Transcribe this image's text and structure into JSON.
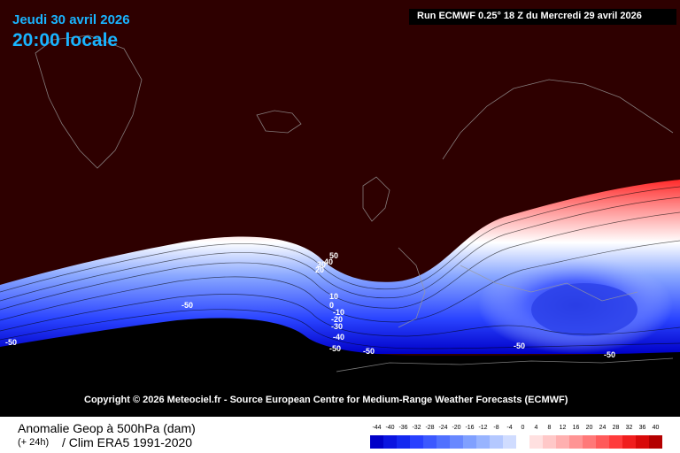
{
  "header": {
    "date": "Jeudi 30 avril 2026",
    "time": "20:00 locale",
    "run": "Run ECMWF 0.25° 18 Z du Mercredi 29 avril 2026"
  },
  "copyright": "Copyright © 2026 Meteociel.fr - Source European Centre for Medium-Range Weather Forecasts (ECMWF)",
  "legend": {
    "title": "Anomalie Geop à 500hPa (dam)",
    "lead": "(+ 24h)",
    "clim": "/ Clim ERA5 1991-2020",
    "ticks": [
      "-44",
      "-40",
      "-36",
      "-32",
      "-28",
      "-24",
      "-20",
      "-16",
      "-12",
      "-8",
      "-4",
      "0",
      "4",
      "8",
      "12",
      "16",
      "20",
      "24",
      "28",
      "32",
      "36",
      "40"
    ],
    "colors": [
      "#0000c8",
      "#0a14e0",
      "#1428f0",
      "#2840ff",
      "#3c58ff",
      "#5070ff",
      "#6888ff",
      "#80a0ff",
      "#98b4ff",
      "#b4c8ff",
      "#d0dcff",
      "#ffffff",
      "#ffe0e0",
      "#ffc8c8",
      "#ffb0b0",
      "#ff9494",
      "#ff7878",
      "#ff5a5a",
      "#ff3c3c",
      "#f01e1e",
      "#d80a0a",
      "#b40000"
    ]
  },
  "map": {
    "background_color": "#2e0000",
    "south_color": "#000000",
    "contour_labels": [
      "50",
      "40",
      "30",
      "20",
      "10",
      "0",
      "-10",
      "-20",
      "-30",
      "-40",
      "-50",
      "-50",
      "-50",
      "-50",
      "-50",
      "-50"
    ]
  }
}
